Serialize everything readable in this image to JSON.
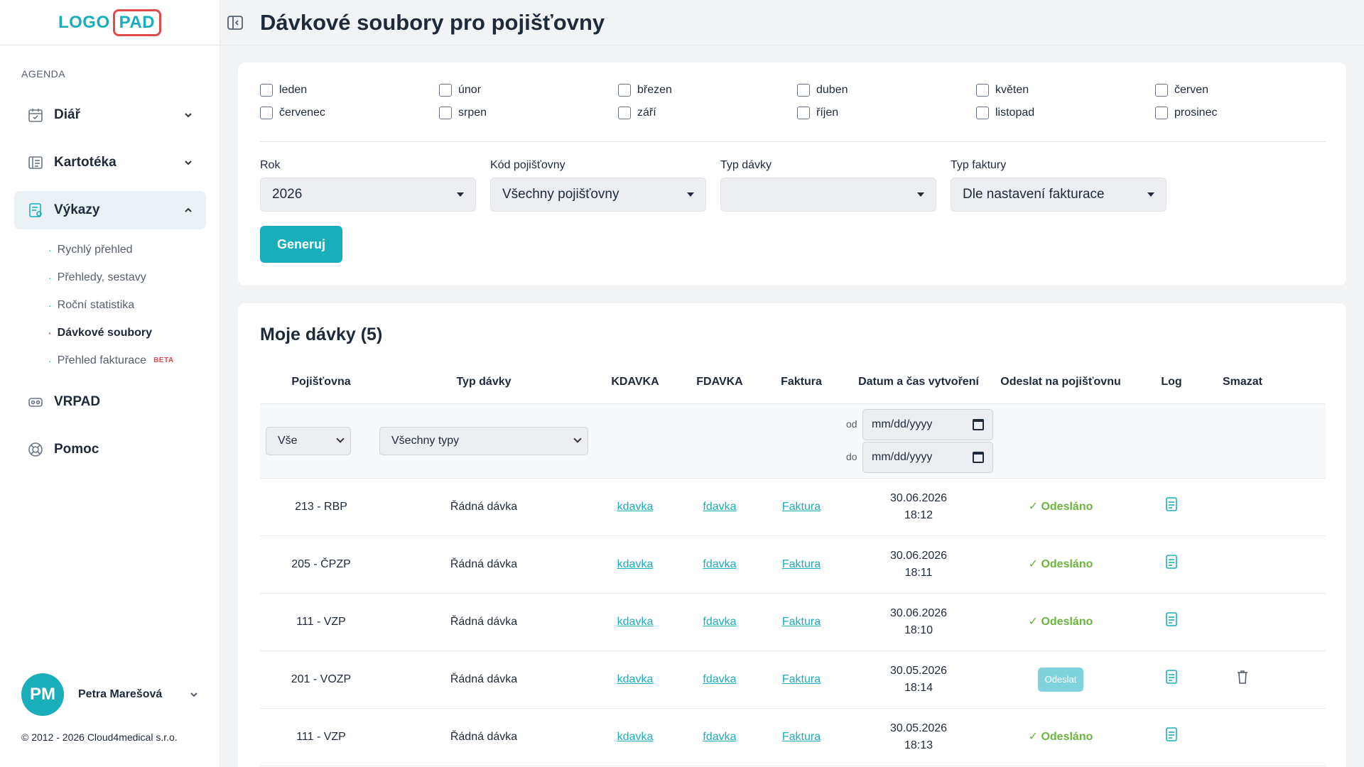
{
  "sidebar": {
    "logo": {
      "part1": "LOGO",
      "part2": "PAD"
    },
    "section_label": "AGENDA",
    "items": [
      {
        "label": "Diář",
        "icon": "calendar-icon"
      },
      {
        "label": "Kartotéka",
        "icon": "card-index-icon"
      },
      {
        "label": "Výkazy",
        "icon": "report-icon"
      },
      {
        "label": "VRPAD",
        "icon": "vr-headset-icon"
      },
      {
        "label": "Pomoc",
        "icon": "lifebuoy-icon"
      }
    ],
    "subitems": [
      {
        "label": "Rychlý přehled"
      },
      {
        "label": "Přehledy, sestavy"
      },
      {
        "label": "Roční statistika"
      },
      {
        "label": "Dávkové soubory"
      },
      {
        "label": "Přehled fakturace",
        "badge": "BETA"
      }
    ],
    "user": {
      "initials": "PM",
      "name": "Petra Marešová"
    },
    "copyright": "© 2012 - 2026 Cloud4medical s.r.o."
  },
  "header": {
    "title": "Dávkové soubory pro pojišťovny"
  },
  "filters": {
    "months": [
      "leden",
      "únor",
      "březen",
      "duben",
      "květen",
      "červen",
      "červenec",
      "srpen",
      "září",
      "říjen",
      "listopad",
      "prosinec"
    ],
    "rok": {
      "label": "Rok",
      "value": "2026"
    },
    "kod": {
      "label": "Kód pojišťovny",
      "value": "Všechny pojišťovny"
    },
    "typ_davky": {
      "label": "Typ dávky",
      "value": ""
    },
    "typ_faktury": {
      "label": "Typ faktury",
      "value": "Dle nastavení fakturace"
    },
    "generate_label": "Generuj"
  },
  "table": {
    "title": "Moje dávky (5)",
    "columns": [
      "Pojišťovna",
      "Typ dávky",
      "KDAVKA",
      "FDAVKA",
      "Faktura",
      "Datum a čas vytvoření",
      "Odeslat na pojišťovnu",
      "Log",
      "Smazat"
    ],
    "filter_row": {
      "pojistovna": "Vše",
      "typ": "Všechny typy",
      "od_label": "od",
      "do_label": "do",
      "date_placeholder": "mm/dd/yyyy"
    },
    "rows": [
      {
        "pojistovna": "213 - RBP",
        "typ": "Řádná dávka",
        "kdavka": "kdavka",
        "fdavka": "fdavka",
        "faktura": "Faktura",
        "date": "30.06.2026",
        "time": "18:12",
        "status": "✓ Odesláno"
      },
      {
        "pojistovna": "205 - ČPZP",
        "typ": "Řádná dávka",
        "kdavka": "kdavka",
        "fdavka": "fdavka",
        "faktura": "Faktura",
        "date": "30.06.2026",
        "time": "18:11",
        "status": "✓ Odesláno"
      },
      {
        "pojistovna": "111 - VZP",
        "typ": "Řádná dávka",
        "kdavka": "kdavka",
        "fdavka": "fdavka",
        "faktura": "Faktura",
        "date": "30.06.2026",
        "time": "18:10",
        "status": "✓ Odesláno"
      },
      {
        "pojistovna": "201 - VOZP",
        "typ": "Řádná dávka",
        "kdavka": "kdavka",
        "fdavka": "fdavka",
        "faktura": "Faktura",
        "date": "30.05.2026",
        "time": "18:14",
        "status": "Odeslat"
      },
      {
        "pojistovna": "111 - VZP",
        "typ": "Řádná dávka",
        "kdavka": "kdavka",
        "fdavka": "fdavka",
        "faktura": "Faktura",
        "date": "30.05.2026",
        "time": "18:13",
        "status": "✓ Odesláno"
      }
    ]
  },
  "colors": {
    "accent": "#1aaebb",
    "brand_red": "#e04a4a",
    "success": "#6cb33f"
  }
}
